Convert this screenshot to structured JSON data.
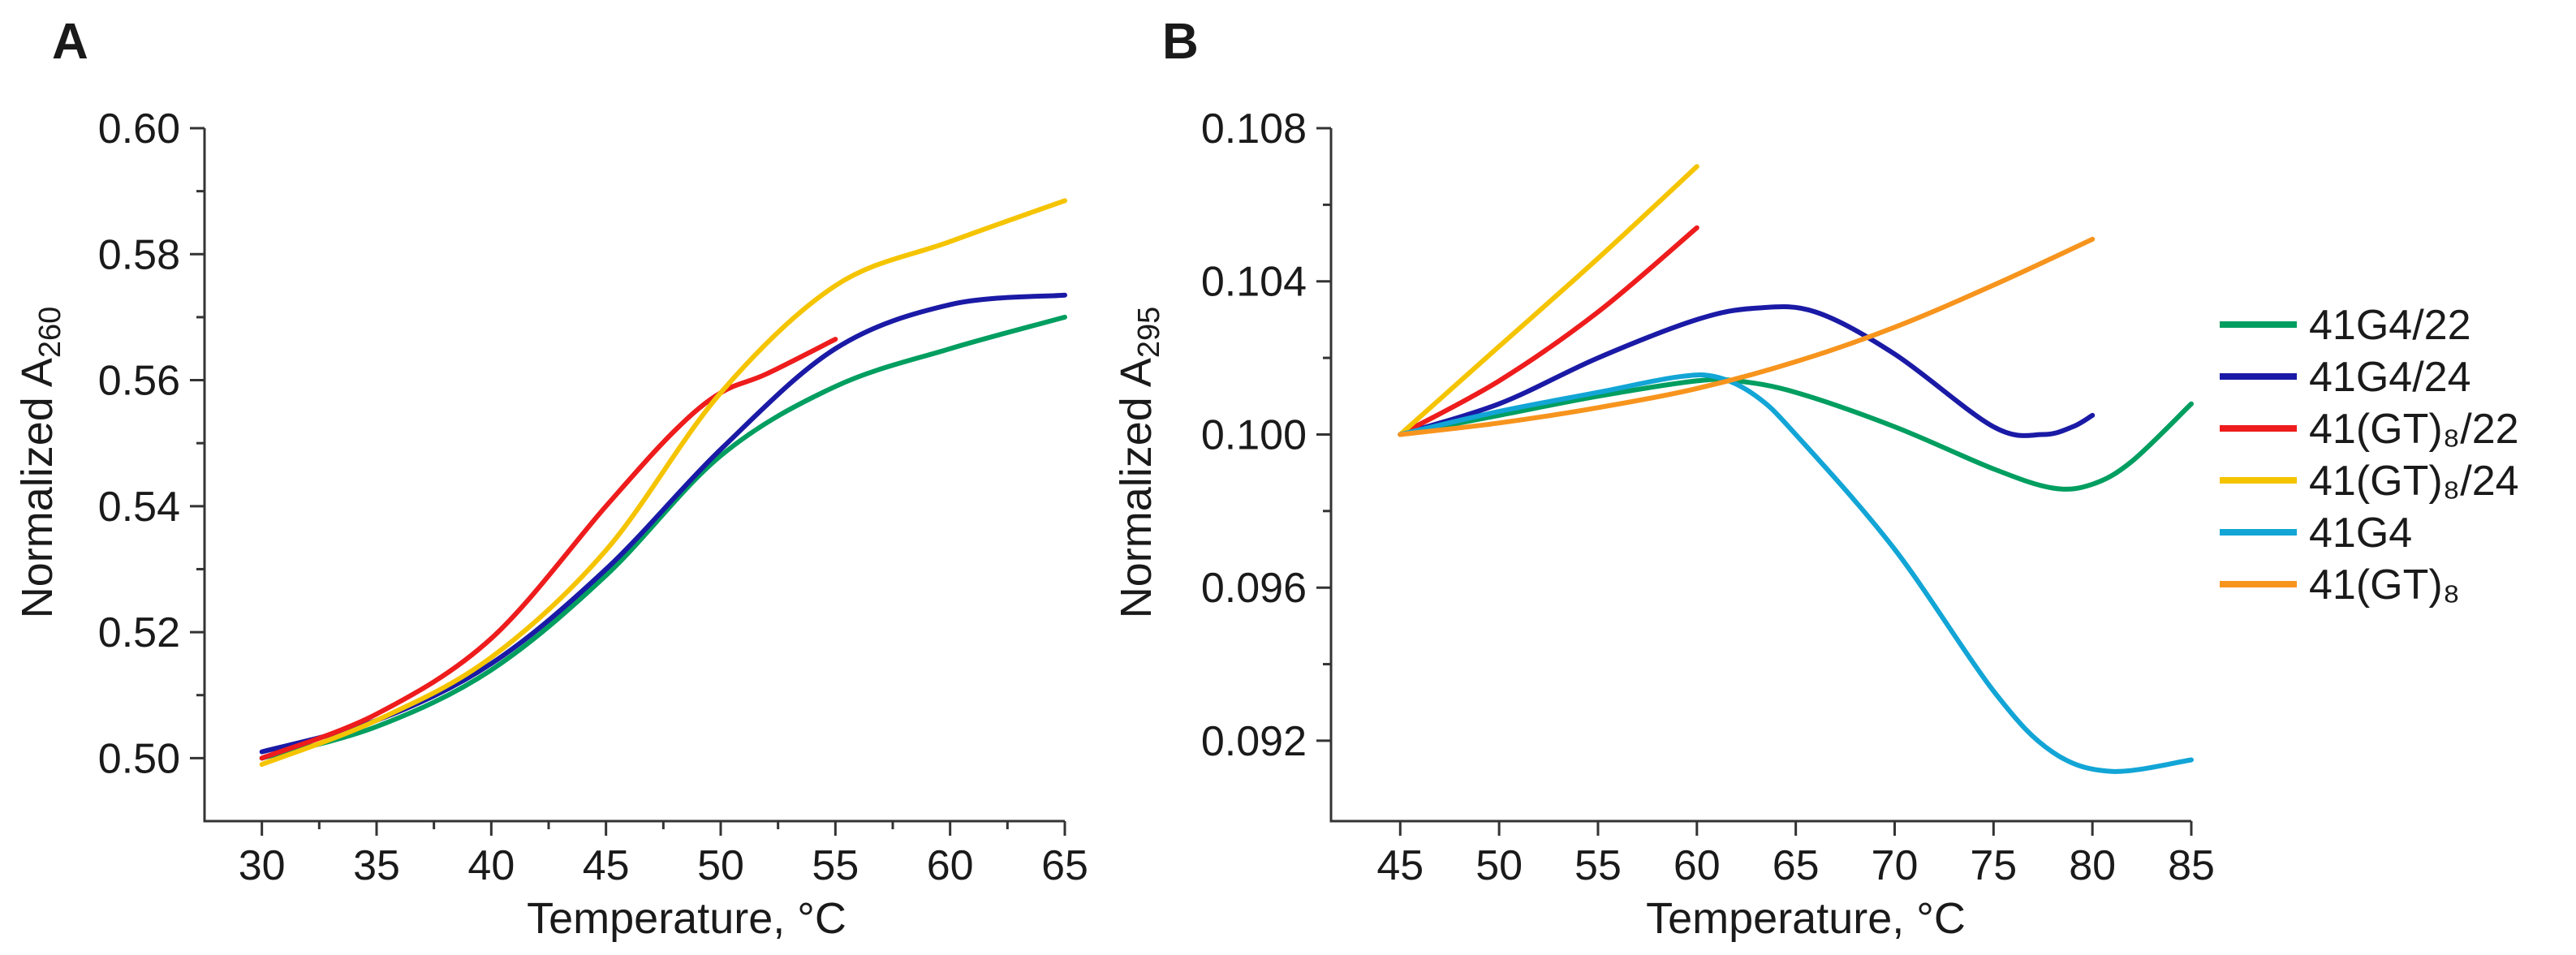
{
  "chart_data": [
    {
      "type": "line",
      "panel_label": "A",
      "xlabel": "Temperature, °C",
      "ylabel": "Normalized A",
      "ylabel_sub": "260",
      "xlim": [
        27.5,
        65
      ],
      "ylim": [
        0.49,
        0.6
      ],
      "x_ticks": [
        30,
        35,
        40,
        45,
        50,
        55,
        60,
        65
      ],
      "x_tick_labels": [
        "30",
        "35",
        "40",
        "45",
        "50",
        "55",
        "60",
        "65"
      ],
      "y_ticks": [
        0.5,
        0.52,
        0.54,
        0.56,
        0.58,
        0.6
      ],
      "y_tick_labels": [
        "0.50",
        "0.52",
        "0.54",
        "0.56",
        "0.58",
        "0.60"
      ],
      "grid": false,
      "series": [
        {
          "name": "41G4/22",
          "color": "#009E60",
          "x": [
            30,
            35,
            40,
            45,
            50,
            55,
            60,
            65
          ],
          "y": [
            0.5,
            0.505,
            0.514,
            0.529,
            0.548,
            0.559,
            0.565,
            0.57
          ]
        },
        {
          "name": "41G4/24",
          "color": "#1A1AA6",
          "x": [
            30,
            35,
            40,
            45,
            50,
            55,
            60,
            65
          ],
          "y": [
            0.501,
            0.506,
            0.515,
            0.53,
            0.549,
            0.565,
            0.572,
            0.5735
          ]
        },
        {
          "name": "41(GT)8/22",
          "color": "#EE1C1C",
          "x": [
            30,
            35,
            40,
            45,
            48,
            50,
            52,
            55
          ],
          "y": [
            0.5,
            0.507,
            0.519,
            0.54,
            0.552,
            0.558,
            0.561,
            0.5665
          ]
        },
        {
          "name": "41(GT)8/24",
          "color": "#F5C400",
          "x": [
            30,
            35,
            40,
            45,
            50,
            55,
            60,
            65
          ],
          "y": [
            0.499,
            0.506,
            0.516,
            0.533,
            0.558,
            0.575,
            0.582,
            0.5885
          ]
        }
      ]
    },
    {
      "type": "line",
      "panel_label": "B",
      "xlabel": "Temperature, °C",
      "ylabel": "Normalized A",
      "ylabel_sub": "295",
      "xlim": [
        41.5,
        85
      ],
      "ylim": [
        0.0899,
        0.108
      ],
      "x_ticks": [
        45,
        50,
        55,
        60,
        65,
        70,
        75,
        80,
        85
      ],
      "x_tick_labels": [
        "45",
        "50",
        "55",
        "60",
        "65",
        "70",
        "75",
        "80",
        "85"
      ],
      "y_ticks": [
        0.092,
        0.096,
        0.1,
        0.104,
        0.108
      ],
      "y_tick_labels": [
        "0.092",
        "0.096",
        "0.100",
        "0.104",
        "0.108"
      ],
      "grid": false,
      "legend_position": "right",
      "series": [
        {
          "name": "41G4/22",
          "color": "#009E60",
          "x": [
            45,
            50,
            55,
            60,
            62,
            65,
            70,
            75,
            78,
            80,
            82,
            85
          ],
          "y": [
            0.1,
            0.1005,
            0.101,
            0.1014,
            0.1014,
            0.1011,
            0.1002,
            0.0991,
            0.0986,
            0.0987,
            0.0993,
            0.1008
          ]
        },
        {
          "name": "41G4/24",
          "color": "#1A1AA6",
          "x": [
            45,
            50,
            55,
            60,
            63,
            66,
            70,
            75,
            77.5,
            79,
            80
          ],
          "y": [
            0.1,
            0.1008,
            0.102,
            0.103,
            0.1033,
            0.1032,
            0.1021,
            0.1002,
            0.1,
            0.1002,
            0.1005
          ]
        },
        {
          "name": "41(GT)8/22",
          "color": "#EE1C1C",
          "x": [
            45,
            50,
            55,
            60
          ],
          "y": [
            0.1,
            0.1014,
            0.1032,
            0.1054
          ]
        },
        {
          "name": "41(GT)8/24",
          "color": "#F5C400",
          "x": [
            45,
            50,
            55,
            60
          ],
          "y": [
            0.1,
            0.1023,
            0.1046,
            0.107
          ]
        },
        {
          "name": "41G4",
          "color": "#12A5D6",
          "x": [
            45,
            50,
            55,
            59,
            61,
            63,
            65,
            70,
            75,
            78,
            81,
            85
          ],
          "y": [
            0.1,
            0.1006,
            0.1011,
            0.1015,
            0.1015,
            0.101,
            0.1,
            0.097,
            0.0933,
            0.0917,
            0.0912,
            0.0915
          ]
        },
        {
          "name": "41(GT)8",
          "color": "#F7941D",
          "x": [
            45,
            50,
            55,
            60,
            65,
            70,
            75,
            80
          ],
          "y": [
            0.1,
            0.1003,
            0.1007,
            0.1012,
            0.1019,
            0.1028,
            0.1039,
            0.1051
          ]
        }
      ]
    }
  ],
  "legend": [
    {
      "label": "41G4/22",
      "color": "#009E60"
    },
    {
      "label": "41G4/24",
      "color": "#1A1AA6"
    },
    {
      "label": "41(GT)₈/22",
      "color": "#EE1C1C"
    },
    {
      "label": "41(GT)₈/24",
      "color": "#F5C400"
    },
    {
      "label": "41G4",
      "color": "#12A5D6"
    },
    {
      "label": "41(GT)₈",
      "color": "#F7941D"
    }
  ]
}
